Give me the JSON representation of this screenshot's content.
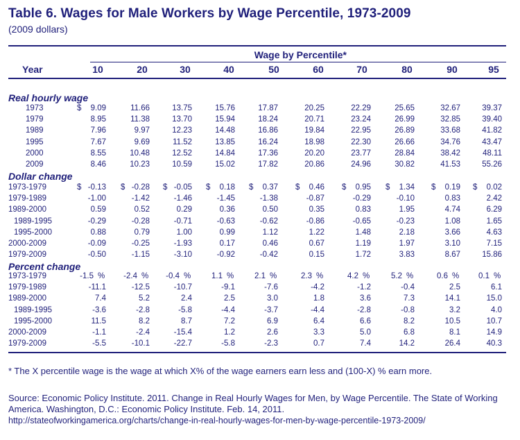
{
  "title": "Table 6.  Wages for Male Workers by Wage Percentile, 1973-2009",
  "subtitle": "(2009 dollars)",
  "group_header": "Wage by Percentile*",
  "year_header": "Year",
  "columns": [
    "10",
    "20",
    "30",
    "40",
    "50",
    "60",
    "70",
    "80",
    "90",
    "95"
  ],
  "sections": [
    {
      "title": "Real hourly wage",
      "rows": [
        {
          "year": "1973",
          "indent": true,
          "dollar_first": true,
          "values": [
            "9.09",
            "11.66",
            "13.75",
            "15.76",
            "17.87",
            "20.25",
            "22.29",
            "25.65",
            "32.67",
            "39.37"
          ]
        },
        {
          "year": "1979",
          "indent": true,
          "values": [
            "8.95",
            "11.38",
            "13.70",
            "15.94",
            "18.24",
            "20.71",
            "23.24",
            "26.99",
            "32.85",
            "39.40"
          ]
        },
        {
          "year": "1989",
          "indent": true,
          "values": [
            "7.96",
            "9.97",
            "12.23",
            "14.48",
            "16.86",
            "19.84",
            "22.95",
            "26.89",
            "33.68",
            "41.82"
          ]
        },
        {
          "year": "1995",
          "indent": true,
          "values": [
            "7.67",
            "9.69",
            "11.52",
            "13.85",
            "16.24",
            "18.98",
            "22.30",
            "26.66",
            "34.76",
            "43.47"
          ]
        },
        {
          "year": "2000",
          "indent": true,
          "values": [
            "8.55",
            "10.48",
            "12.52",
            "14.84",
            "17.36",
            "20.20",
            "23.77",
            "28.84",
            "38.42",
            "48.11"
          ]
        },
        {
          "year": "2009",
          "indent": true,
          "values": [
            "8.46",
            "10.23",
            "10.59",
            "15.02",
            "17.82",
            "20.86",
            "24.96",
            "30.82",
            "41.53",
            "55.26"
          ]
        }
      ]
    },
    {
      "title": "Dollar change",
      "rows": [
        {
          "year": "1973-1979",
          "indent": false,
          "dollar_all": true,
          "values": [
            "-0.13",
            "-0.28",
            "-0.05",
            "0.18",
            "0.37",
            "0.46",
            "0.95",
            "1.34",
            "0.19",
            "0.02"
          ]
        },
        {
          "year": "1979-1989",
          "indent": false,
          "values": [
            "-1.00",
            "-1.42",
            "-1.46",
            "-1.45",
            "-1.38",
            "-0.87",
            "-0.29",
            "-0.10",
            "0.83",
            "2.42"
          ]
        },
        {
          "year": "1989-2000",
          "indent": false,
          "values": [
            "0.59",
            "0.52",
            "0.29",
            "0.36",
            "0.50",
            "0.35",
            "0.83",
            "1.95",
            "4.74",
            "6.29"
          ]
        },
        {
          "year": "1989-1995",
          "indent": true,
          "values": [
            "-0.29",
            "-0.28",
            "-0.71",
            "-0.63",
            "-0.62",
            "-0.86",
            "-0.65",
            "-0.23",
            "1.08",
            "1.65"
          ]
        },
        {
          "year": "1995-2000",
          "indent": true,
          "values": [
            "0.88",
            "0.79",
            "1.00",
            "0.99",
            "1.12",
            "1.22",
            "1.48",
            "2.18",
            "3.66",
            "4.63"
          ]
        },
        {
          "year": "2000-2009",
          "indent": false,
          "values": [
            "-0.09",
            "-0.25",
            "-1.93",
            "0.17",
            "0.46",
            "0.67",
            "1.19",
            "1.97",
            "3.10",
            "7.15"
          ]
        },
        {
          "year": "1979-2009",
          "indent": false,
          "values": [
            "-0.50",
            "-1.15",
            "-3.10",
            "-0.92",
            "-0.42",
            "0.15",
            "1.72",
            "3.83",
            "8.67",
            "15.86"
          ]
        }
      ]
    },
    {
      "title": "Percent change",
      "rows": [
        {
          "year": "1973-1979",
          "indent": false,
          "pct_all": true,
          "values": [
            "-1.5",
            "-2.4",
            "-0.4",
            "1.1",
            "2.1",
            "2.3",
            "4.2",
            "5.2",
            "0.6",
            "0.1"
          ]
        },
        {
          "year": "1979-1989",
          "indent": false,
          "values": [
            "-11.1",
            "-12.5",
            "-10.7",
            "-9.1",
            "-7.6",
            "-4.2",
            "-1.2",
            "-0.4",
            "2.5",
            "6.1"
          ]
        },
        {
          "year": "1989-2000",
          "indent": false,
          "values": [
            "7.4",
            "5.2",
            "2.4",
            "2.5",
            "3.0",
            "1.8",
            "3.6",
            "7.3",
            "14.1",
            "15.0"
          ]
        },
        {
          "year": "1989-1995",
          "indent": true,
          "values": [
            "-3.6",
            "-2.8",
            "-5.8",
            "-4.4",
            "-3.7",
            "-4.4",
            "-2.8",
            "-0.8",
            "3.2",
            "4.0"
          ]
        },
        {
          "year": "1995-2000",
          "indent": true,
          "values": [
            "11.5",
            "8.2",
            "8.7",
            "7.2",
            "6.9",
            "6.4",
            "6.6",
            "8.2",
            "10.5",
            "10.7"
          ]
        },
        {
          "year": "2000-2009",
          "indent": false,
          "values": [
            "-1.1",
            "-2.4",
            "-15.4",
            "1.2",
            "2.6",
            "3.3",
            "5.0",
            "6.8",
            "8.1",
            "14.9"
          ]
        },
        {
          "year": "1979-2009",
          "indent": false,
          "values": [
            "-5.5",
            "-10.1",
            "-22.7",
            "-5.8",
            "-2.3",
            "0.7",
            "7.4",
            "14.2",
            "26.4",
            "40.3"
          ]
        }
      ]
    }
  ],
  "dollar_sign": "$",
  "percent_sign": "%",
  "footnote": "* The X percentile wage is the wage at which X% of the wage earners earn less and (100-X) % earn more.",
  "source": "Source: Economic Policy Institute. 2011. Change in Real Hourly Wages for Men, by Wage Percentile. The State of Working America. Washington, D.C.: Economic Policy Institute. Feb. 14, 2011.",
  "source_url": "http://stateofworkingamerica.org/charts/change-in-real-hourly-wages-for-men-by-wage-percentile-1973-2009/",
  "colors": {
    "text": "#1f1f7a",
    "rule": "#1f1f7a",
    "background": "#ffffff"
  }
}
